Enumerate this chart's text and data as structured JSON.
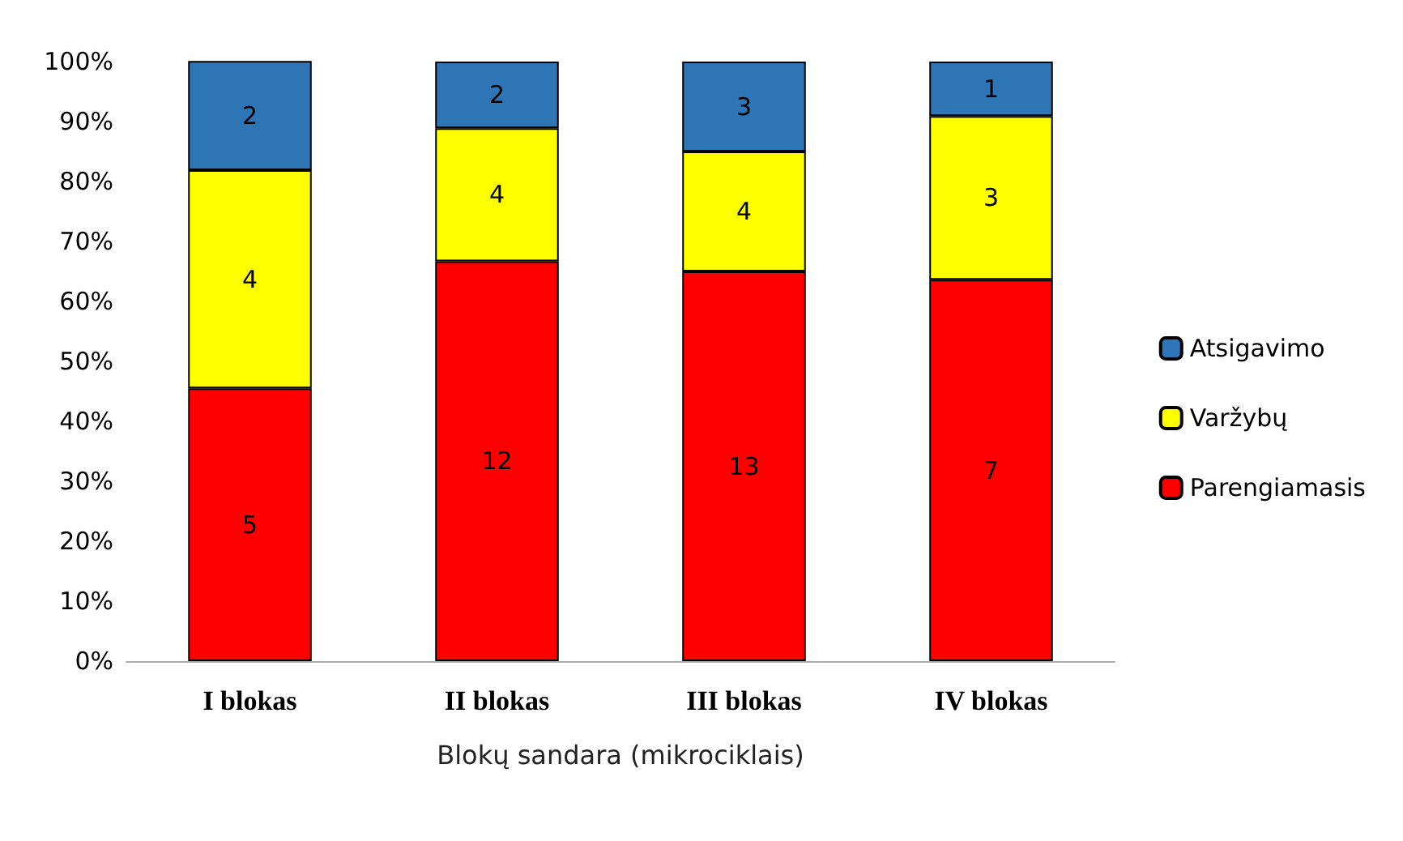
{
  "chart_data": {
    "type": "bar",
    "stacked": true,
    "xlabel": "Blokų sandara (mikrociklais)",
    "categories": [
      "I blokas",
      "II blokas",
      "III blokas",
      "IV blokas"
    ],
    "series": [
      {
        "name": "Parengiamasis",
        "color": "#ff0000",
        "values": [
          45.5,
          66.7,
          65,
          63.6
        ]
      },
      {
        "name": "Varžybų",
        "color": "#ffff00",
        "values": [
          36.4,
          22.2,
          20,
          27.3
        ]
      },
      {
        "name": "Atsigavimo",
        "color": "#2e75b6",
        "values": [
          18.2,
          11.1,
          15,
          9.1
        ]
      }
    ],
    "annotations": [
      "5",
      "4",
      "2",
      "12",
      "4",
      "2",
      "13",
      "4",
      "3",
      "7",
      "3",
      "1"
    ],
    "ylim": [
      0,
      100
    ],
    "yticks": [
      {
        "value": 0,
        "label": "0%"
      },
      {
        "value": 10,
        "label": "10%"
      },
      {
        "value": 20,
        "label": "20%"
      },
      {
        "value": 30,
        "label": "30%"
      },
      {
        "value": 40,
        "label": "40%"
      },
      {
        "value": 50,
        "label": "50%"
      },
      {
        "value": 60,
        "label": "60%"
      },
      {
        "value": 70,
        "label": "70%"
      },
      {
        "value": 80,
        "label": "80%"
      },
      {
        "value": 90,
        "label": "90%"
      },
      {
        "value": 100,
        "label": "100%"
      }
    ],
    "grid": false,
    "legend": "right"
  }
}
